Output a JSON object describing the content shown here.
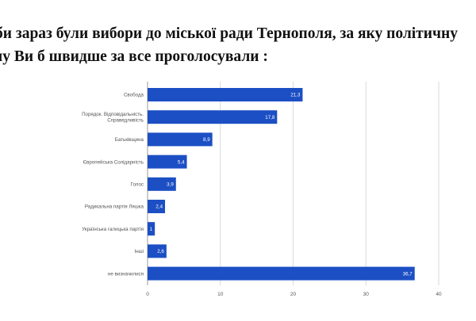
{
  "title": {
    "line1": "би зараз були вибори до міської ради Тернополя, за яку політичну",
    "line2": "ну Ви б швидше за все проголосували :"
  },
  "chart_data": {
    "type": "bar",
    "orientation": "horizontal",
    "categories": [
      [
        "Свобода"
      ],
      [
        "Порядок. Відповідальність.",
        "Справедливість"
      ],
      [
        "Батьківщина"
      ],
      [
        "Європейська Солідарність"
      ],
      [
        "Голос"
      ],
      [
        "Радикальна партія Ляшка"
      ],
      [
        "Українська галицька партія"
      ],
      [
        "Інші"
      ],
      [
        "не визначилися"
      ]
    ],
    "values": [
      21.3,
      17.8,
      8.9,
      5.4,
      3.9,
      2.4,
      1,
      2.6,
      36.7
    ],
    "value_labels": [
      "21,3",
      "17,8",
      "8,9",
      "5,4",
      "3,9",
      "2,4",
      "1",
      "2,6",
      "36,7"
    ],
    "xlim": [
      0,
      40
    ],
    "xticks": [
      0,
      10,
      20,
      30,
      40
    ],
    "grid": true,
    "bar_color": "#1c4fc4",
    "label_color": "#555555",
    "value_label_color": "#ffffff"
  }
}
